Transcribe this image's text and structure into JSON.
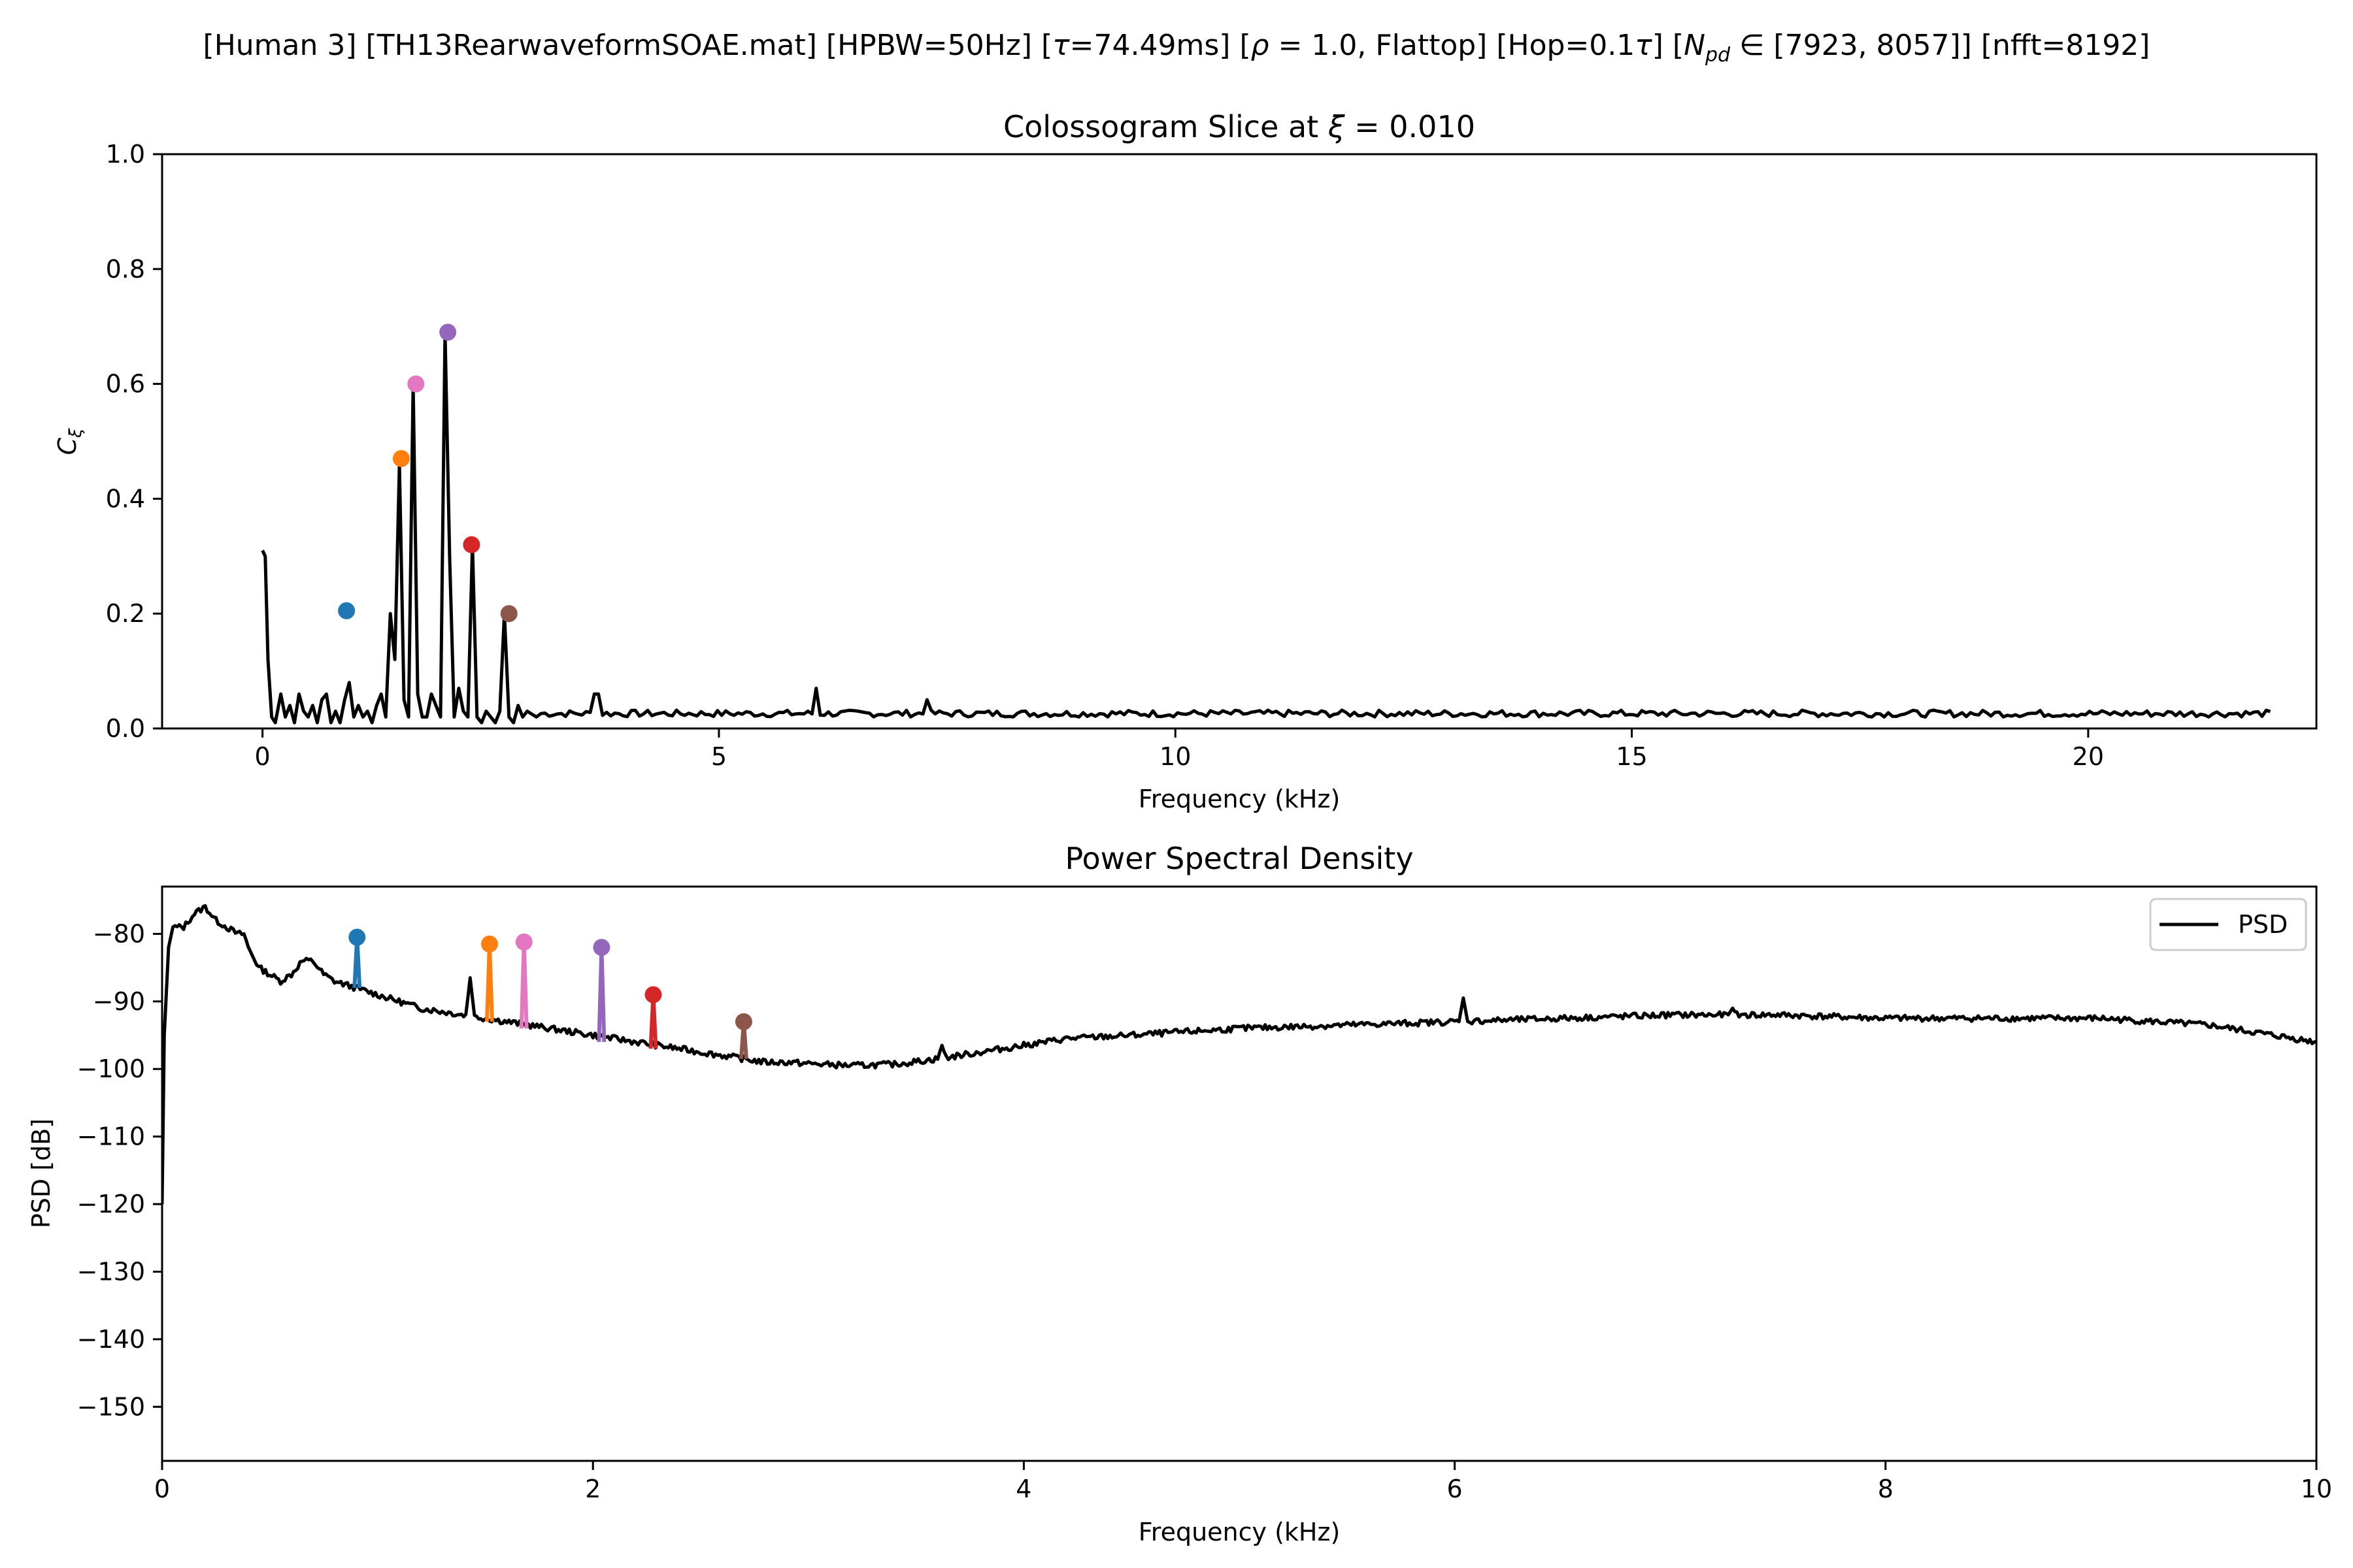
{
  "figure": {
    "suptitle": "[Human 3]   [TH13RearwaveformSOAE.mat]   [HPBW=50Hz]   [τ=74.49ms]   [ρ = 1.0, Flattop]   [Hop=0.1τ]   [N_pd ∈ [7923, 8057]]   [nfft=8192]",
    "suptitle_parts": {
      "p1": "[Human 3]   [TH13RearwaveformSOAE.mat]   [HPBW=50Hz]   [",
      "tau": "τ",
      "p2": "=74.49ms]   [",
      "rho": "ρ",
      "p3": " = 1.0, Flattop]   [Hop=0.1",
      "tau2": "τ",
      "p4": "]   [",
      "N": "N",
      "sub": "pd",
      "p5": " ∈ [7923, 8057]]   [nfft=8192]"
    }
  },
  "chart_data": [
    {
      "type": "line",
      "title": "Colossogram Slice at ξ = 0.010",
      "title_parts": {
        "pre": "Colossogram Slice at ",
        "xi": "ξ",
        "post": " = 0.010"
      },
      "xlabel": "Frequency (kHz)",
      "ylabel": "C_ξ",
      "ylabel_parts": {
        "main": "C",
        "sub": "ξ"
      },
      "xlim": [
        -1.1,
        22.5
      ],
      "ylim": [
        0,
        1
      ],
      "xticks": [
        0,
        5,
        10,
        15,
        20
      ],
      "yticks": [
        "0.0",
        "0.2",
        "0.4",
        "0.6",
        "0.8",
        "1.0"
      ],
      "grid": false,
      "series": [
        {
          "color": "#000000",
          "baseline": 0.026,
          "x": [
            0,
            0.03,
            0.06,
            0.1,
            0.14,
            0.2,
            0.25,
            0.3,
            0.35,
            0.4,
            0.45,
            0.5,
            0.55,
            0.6,
            0.65,
            0.7,
            0.75,
            0.8,
            0.85,
            0.9,
            0.95,
            1.0,
            1.05,
            1.1,
            1.15,
            1.2,
            1.25,
            1.3,
            1.35,
            1.4,
            1.45,
            1.5,
            1.55,
            1.6,
            1.65,
            1.7,
            1.75,
            1.8,
            1.85,
            1.9,
            1.95,
            2.0,
            2.05,
            2.1,
            2.15,
            2.2,
            2.25,
            2.3,
            2.35,
            2.4,
            2.45,
            2.5,
            2.55,
            2.6,
            2.65,
            2.7,
            2.75,
            2.8,
            2.85,
            2.9,
            3.0
          ],
          "y": [
            0.31,
            0.3,
            0.12,
            0.02,
            0.01,
            0.06,
            0.02,
            0.04,
            0.01,
            0.06,
            0.03,
            0.02,
            0.04,
            0.01,
            0.05,
            0.06,
            0.01,
            0.03,
            0.01,
            0.05,
            0.08,
            0.02,
            0.04,
            0.02,
            0.03,
            0.01,
            0.04,
            0.06,
            0.02,
            0.2,
            0.12,
            0.46,
            0.05,
            0.02,
            0.6,
            0.06,
            0.02,
            0.02,
            0.06,
            0.04,
            0.02,
            0.69,
            0.3,
            0.02,
            0.07,
            0.03,
            0.02,
            0.32,
            0.02,
            0.01,
            0.03,
            0.02,
            0.01,
            0.03,
            0.2,
            0.02,
            0.01,
            0.04,
            0.02,
            0.03,
            0.02
          ],
          "spikes": [
            {
              "x": 3.65,
              "y": 0.06
            },
            {
              "x": 6.05,
              "y": 0.07
            },
            {
              "x": 7.28,
              "y": 0.05
            }
          ]
        }
      ],
      "markers": [
        {
          "x": 0.92,
          "y": 0.205,
          "color": "#1f77b4"
        },
        {
          "x": 1.52,
          "y": 0.47,
          "color": "#ff7f0e"
        },
        {
          "x": 1.68,
          "y": 0.6,
          "color": "#e377c2"
        },
        {
          "x": 2.03,
          "y": 0.69,
          "color": "#9467bd"
        },
        {
          "x": 2.29,
          "y": 0.32,
          "color": "#d62728"
        },
        {
          "x": 2.7,
          "y": 0.2,
          "color": "#8c564b"
        }
      ]
    },
    {
      "type": "line",
      "title": "Power Spectral Density",
      "xlabel": "Frequency (kHz)",
      "ylabel": "PSD [dB]",
      "xlim": [
        0,
        10
      ],
      "ylim": [
        -158,
        -73
      ],
      "xticks": [
        0,
        2,
        4,
        6,
        8,
        10
      ],
      "yticks": [
        -80,
        -90,
        -100,
        -110,
        -120,
        -130,
        -140,
        -150
      ],
      "grid": false,
      "legend": {
        "position": "upper right",
        "entries": [
          {
            "label": "PSD",
            "color": "#000000"
          }
        ]
      },
      "series": [
        {
          "name": "PSD",
          "color": "#000000",
          "x": [
            0.0,
            0.01,
            0.03,
            0.05,
            0.1,
            0.15,
            0.2,
            0.25,
            0.3,
            0.35,
            0.38,
            0.4,
            0.45,
            0.5,
            0.55,
            0.6,
            0.65,
            0.7,
            0.75,
            0.8,
            0.9,
            1.0,
            1.1,
            1.2,
            1.3,
            1.4,
            1.5,
            1.6,
            1.7,
            1.8,
            1.9,
            2.0,
            2.1,
            2.2,
            2.3,
            2.4,
            2.5,
            2.6,
            2.7,
            2.8,
            2.9,
            3.0,
            3.2,
            3.4,
            3.6,
            3.8,
            4.0,
            4.2,
            4.5,
            5.0,
            5.5,
            6.0,
            6.5,
            7.0,
            7.5,
            8.0,
            8.5,
            9.0,
            9.5,
            10.0
          ],
          "y": [
            -120,
            -95,
            -82,
            -79,
            -79,
            -77,
            -76,
            -78,
            -79,
            -80,
            -80,
            -82,
            -85,
            -86,
            -87,
            -86,
            -84,
            -84,
            -86,
            -87,
            -88,
            -89,
            -90,
            -91,
            -91.5,
            -92,
            -92.5,
            -93,
            -93.5,
            -94,
            -94.5,
            -95,
            -95.5,
            -96,
            -96.5,
            -97,
            -97.5,
            -98,
            -98.5,
            -99,
            -99,
            -99.2,
            -99.5,
            -99.3,
            -98.5,
            -97.5,
            -96.5,
            -95.5,
            -95,
            -94,
            -93.5,
            -93,
            -92.5,
            -92,
            -92,
            -92.5,
            -92.5,
            -92.5,
            -93.5,
            -96
          ],
          "spikes": [
            {
              "x": 1.43,
              "y": -86.5
            },
            {
              "x": 3.62,
              "y": -96.5
            },
            {
              "x": 6.04,
              "y": -89.5
            },
            {
              "x": 7.29,
              "y": -91
            }
          ]
        }
      ],
      "peaks": [
        {
          "x": 0.905,
          "y": -80.5,
          "base": -88,
          "color": "#1f77b4"
        },
        {
          "x": 1.52,
          "y": -81.5,
          "base": -93,
          "color": "#ff7f0e"
        },
        {
          "x": 1.68,
          "y": -81.2,
          "base": -94,
          "color": "#e377c2"
        },
        {
          "x": 2.04,
          "y": -82,
          "base": -96,
          "color": "#9467bd"
        },
        {
          "x": 2.28,
          "y": -89,
          "base": -97,
          "color": "#d62728"
        },
        {
          "x": 2.7,
          "y": -93,
          "base": -98.5,
          "color": "#8c564b"
        }
      ]
    }
  ]
}
